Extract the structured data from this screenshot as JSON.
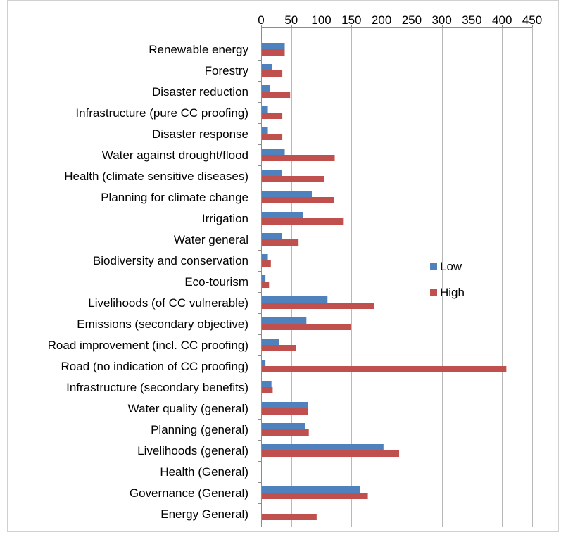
{
  "chart_data": {
    "type": "bar",
    "orientation": "horizontal",
    "title": "",
    "xlabel": "",
    "ylabel": "",
    "xlim": [
      0,
      450
    ],
    "x_ticks": [
      "0",
      "50",
      "100",
      "150",
      "200",
      "250",
      "300",
      "350",
      "400",
      "450"
    ],
    "x_tick_values": [
      0,
      50,
      100,
      150,
      200,
      250,
      300,
      350,
      400,
      450
    ],
    "axis_position": "top",
    "gridlines": "vertical",
    "legend_placement": "right",
    "categories": [
      "Renewable energy",
      "Forestry",
      "Disaster reduction",
      "Infrastructure (pure CC proofing)",
      "Disaster response",
      "Water against drought/flood",
      "Health (climate sensitive diseases)",
      "Planning for climate change",
      "Irrigation",
      "Water general",
      "Biodiversity and conservation",
      "Eco-tourism",
      "Livelihoods (of CC vulnerable)",
      "Emissions (secondary objective)",
      "Road improvement (incl. CC proofing)",
      "Road (no indication of CC proofing)",
      "Infrastructure (secondary benefits)",
      "Water quality (general)",
      "Planning (general)",
      "Livelihoods (general)",
      "Health (General)",
      "Governance (General)",
      "Energy General)"
    ],
    "series": [
      {
        "name": "Low",
        "color": "#4f81bd",
        "values": [
          38,
          17,
          14,
          10,
          10,
          38,
          33,
          83,
          68,
          33,
          10,
          6,
          109,
          74,
          29,
          6,
          16,
          77,
          72,
          202,
          0,
          163,
          0
        ]
      },
      {
        "name": "High",
        "color": "#c0504d",
        "values": [
          38,
          34,
          47,
          34,
          34,
          121,
          104,
          120,
          136,
          61,
          15,
          12,
          187,
          148,
          57,
          406,
          18,
          77,
          78,
          228,
          0,
          176,
          91
        ]
      }
    ]
  }
}
